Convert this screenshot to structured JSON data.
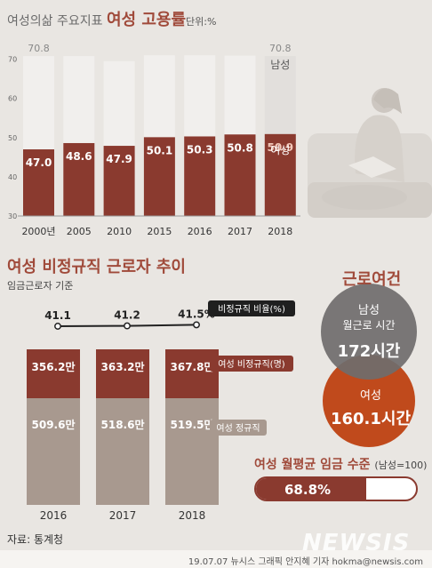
{
  "header1": {
    "prefix": "여성의삶 주요지표",
    "highlight": "여성 고용률",
    "unit": "단위:%"
  },
  "chart_data": [
    {
      "type": "bar",
      "title": "여성 고용률",
      "unit": "%",
      "categories": [
        "2000년",
        "2005",
        "2010",
        "2015",
        "2016",
        "2017",
        "2018"
      ],
      "series": [
        {
          "name": "남성",
          "values": [
            70.8,
            70.8,
            69.5,
            71.0,
            71.0,
            70.9,
            70.8
          ]
        },
        {
          "name": "여성",
          "values": [
            47.0,
            48.6,
            47.9,
            50.1,
            50.3,
            50.8,
            50.9
          ]
        }
      ],
      "labels": {
        "male_first": "70.8",
        "male_last": "70.8"
      },
      "yticks": [
        30,
        40,
        50,
        60,
        70
      ],
      "ylim": [
        30,
        73
      ]
    },
    {
      "type": "bar",
      "title": "여성 비정규직 근로자 추이",
      "subtitle": "임금근로자 기준",
      "categories": [
        "2016",
        "2017",
        "2018"
      ],
      "series": [
        {
          "name": "여성 비정규직(명)",
          "labels": [
            "356.2만",
            "363.2만",
            "367.8만"
          ],
          "values": [
            356.2,
            363.2,
            367.8
          ]
        },
        {
          "name": "여성 정규직",
          "labels": [
            "509.6만",
            "518.6만",
            "519.5만"
          ],
          "values": [
            509.6,
            518.6,
            519.5
          ]
        }
      ],
      "line": {
        "name": "비정규직 비율(%)",
        "values": [
          41.1,
          41.2,
          41.5
        ],
        "labels": [
          "41.1",
          "41.2",
          "41.5%"
        ]
      }
    }
  ],
  "work": {
    "title": "근로여건",
    "male_label": "남성",
    "male_sub": "월근로 시간",
    "male_value": "172시간",
    "female_label": "여성",
    "female_value": "160.1시간"
  },
  "wage": {
    "title": "여성 월평균 임금 수준",
    "note": "(남성=100)",
    "value": "68.8%",
    "ratio": 0.688
  },
  "source": "자료: 통계청",
  "logo": "NEWSIS",
  "credit": "19.07.07  뉴시스 그래픽 안지혜 기자  hokma@newsis.com",
  "colors": {
    "female": "#8a3a2f",
    "male": "#d9d6d3",
    "regular": "#a8998f",
    "male_circle": "#6f6d6d",
    "female_circle": "#c04a1c"
  }
}
